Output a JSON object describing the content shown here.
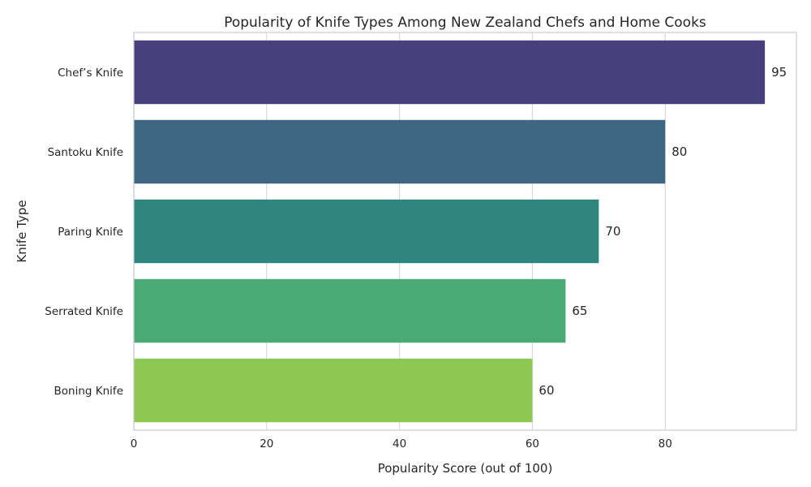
{
  "chart_data": {
    "type": "bar",
    "orientation": "horizontal",
    "title": "Popularity of Knife Types Among New Zealand Chefs and Home Cooks",
    "xlabel": "Popularity Score (out of 100)",
    "ylabel": "Knife Type",
    "categories": [
      "Chef’s Knife",
      "Santoku Knife",
      "Paring Knife",
      "Serrated Knife",
      "Boning Knife"
    ],
    "values": [
      95,
      80,
      70,
      65,
      60
    ],
    "colors": [
      "#48407e",
      "#3e6784",
      "#2e867f",
      "#4aab76",
      "#8dc854"
    ],
    "xlim": [
      0,
      99.75
    ],
    "xticks": [
      0,
      20,
      40,
      60,
      80
    ],
    "grid": true,
    "legend": "none"
  }
}
